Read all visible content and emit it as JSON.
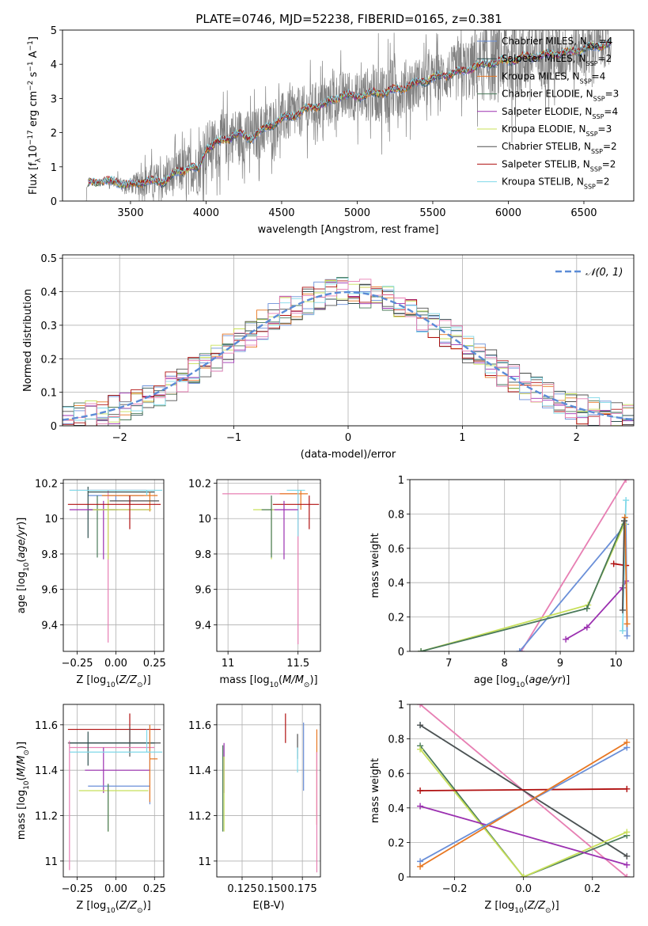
{
  "title": "PLATE=0746, MJD=52238, FIBERID=0165, z=0.381",
  "colors": {
    "Chabrier MILES": "#6a8fd8",
    "Salpeter MILES": "#2f4f4f",
    "Kroupa MILES": "#e87722",
    "Chabrier ELODIE": "#4a7a5a",
    "Salpeter ELODIE": "#9b30b0",
    "Kroupa ELODIE": "#c8e05a",
    "Chabrier STELIB": "#505050",
    "Salpeter STELIB": "#b01010",
    "Kroupa STELIB": "#7fd8e8",
    "Gaussian": "#5b8bd6",
    "Data": "#808080",
    "Pink": "#e77fb3"
  },
  "chart_data": [
    {
      "type": "line",
      "panel": "spectrum",
      "xlabel": "wavelength [Angstrom, rest frame]",
      "ylabel": "Flux [f_λ 10^-17 erg cm^-2 s^-1 A^-1]",
      "xlim": [
        3050,
        6830
      ],
      "ylim": [
        0,
        5
      ],
      "xticks": [
        3500,
        4000,
        4500,
        5000,
        5500,
        6000,
        6500
      ],
      "yticks": [
        0,
        1,
        2,
        3,
        4,
        5
      ],
      "legend_position": "right",
      "legend": [
        {
          "label": "Chabrier MILES, N",
          "sub": "SSP",
          "suffix": "=4",
          "color_key": "Chabrier MILES"
        },
        {
          "label": "Salpeter MILES, N",
          "sub": "SSP",
          "suffix": "=2",
          "color_key": "Salpeter MILES"
        },
        {
          "label": "Kroupa MILES, N",
          "sub": "SSP",
          "suffix": "=4",
          "color_key": "Kroupa MILES"
        },
        {
          "label": "Chabrier ELODIE, N",
          "sub": "SSP",
          "suffix": "=3",
          "color_key": "Chabrier ELODIE"
        },
        {
          "label": "Salpeter ELODIE, N",
          "sub": "SSP",
          "suffix": "=4",
          "color_key": "Salpeter ELODIE"
        },
        {
          "label": "Kroupa ELODIE, N",
          "sub": "SSP",
          "suffix": "=3",
          "color_key": "Kroupa ELODIE"
        },
        {
          "label": "Chabrier STELIB, N",
          "sub": "SSP",
          "suffix": "=2",
          "color_key": "Chabrier STELIB"
        },
        {
          "label": "Salpeter STELIB, N",
          "sub": "SSP",
          "suffix": "=2",
          "color_key": "Salpeter STELIB"
        },
        {
          "label": "Kroupa STELIB, N",
          "sub": "SSP",
          "suffix": "=2",
          "color_key": "Kroupa STELIB"
        }
      ],
      "model_continuum": [
        [
          3200,
          0.3
        ],
        [
          3230,
          0.55
        ],
        [
          3300,
          0.58
        ],
        [
          3400,
          0.56
        ],
        [
          3500,
          0.45
        ],
        [
          3600,
          0.6
        ],
        [
          3700,
          0.55
        ],
        [
          3800,
          0.8
        ],
        [
          3900,
          1.0
        ],
        [
          3950,
          0.9
        ],
        [
          4000,
          1.55
        ],
        [
          4100,
          1.75
        ],
        [
          4200,
          1.95
        ],
        [
          4300,
          1.85
        ],
        [
          4400,
          2.15
        ],
        [
          4500,
          2.4
        ],
        [
          4600,
          2.55
        ],
        [
          4700,
          2.75
        ],
        [
          4800,
          2.85
        ],
        [
          4900,
          3.1
        ],
        [
          5000,
          3.05
        ],
        [
          5100,
          3.15
        ],
        [
          5200,
          3.2
        ],
        [
          5300,
          3.3
        ],
        [
          5400,
          3.45
        ],
        [
          5500,
          3.6
        ],
        [
          5600,
          3.7
        ],
        [
          5700,
          3.8
        ],
        [
          5800,
          3.95
        ],
        [
          5900,
          4.05
        ],
        [
          6000,
          4.1
        ],
        [
          6100,
          4.2
        ],
        [
          6200,
          4.25
        ],
        [
          6300,
          4.3
        ],
        [
          6400,
          4.35
        ],
        [
          6500,
          4.45
        ],
        [
          6600,
          4.55
        ],
        [
          6680,
          4.6
        ]
      ],
      "data_noise_envelope": [
        [
          3200,
          0.0
        ],
        [
          3500,
          0.3
        ],
        [
          3600,
          0.6
        ],
        [
          3800,
          0.8
        ],
        [
          4000,
          1.0
        ],
        [
          4400,
          1.0
        ],
        [
          4700,
          0.9
        ],
        [
          5000,
          0.9
        ],
        [
          5200,
          1.2
        ],
        [
          5500,
          0.8
        ],
        [
          5800,
          1.3
        ],
        [
          6000,
          1.6
        ],
        [
          6200,
          1.2
        ],
        [
          6400,
          1.1
        ],
        [
          6680,
          0.8
        ]
      ]
    },
    {
      "type": "step",
      "panel": "residual_histogram",
      "xlabel": "(data-model)/error",
      "ylabel": "Normed distribution",
      "xlim": [
        -2.5,
        2.5
      ],
      "ylim": [
        0,
        0.51
      ],
      "xticks": [
        -2,
        -1,
        0,
        1,
        2
      ],
      "yticks": [
        0.0,
        0.1,
        0.2,
        0.3,
        0.4,
        0.5
      ],
      "grid": true,
      "legend_position": "top-right",
      "gaussian_label": "𝒩(0, 1)",
      "bin_width": 0.1
    },
    {
      "type": "errorbar",
      "panel": "age_vs_Z",
      "xlabel": "Z [log10(Z/Z⊙)]",
      "ylabel": "age  [log10(age/yr)]",
      "xlim": [
        -0.34,
        0.31
      ],
      "ylim": [
        9.25,
        10.22
      ],
      "xticks": [
        -0.25,
        0.0,
        0.25
      ],
      "xtick_labels": [
        "−0.25",
        "0.00",
        "0.25"
      ],
      "yticks": [
        9.4,
        9.6,
        9.8,
        10.0,
        10.2
      ],
      "grid": true,
      "points": [
        {
          "key": "Pink",
          "x": -0.05,
          "xerr": [
            0.25,
            0.25
          ],
          "y": 10.16,
          "yerr": [
            0.86,
            0.0
          ]
        },
        {
          "key": "Chabrier MILES",
          "x": 0.0,
          "xerr": [
            0.18,
            0.18
          ],
          "y": 10.13,
          "yerr": [
            0.03,
            0.0
          ]
        },
        {
          "key": "Salpeter MILES",
          "x": -0.18,
          "xerr": [
            0.0,
            0.43
          ],
          "y": 10.15,
          "yerr": [
            0.26,
            0.03
          ]
        },
        {
          "key": "Kroupa MILES",
          "x": 0.22,
          "xerr": [
            0.31,
            0.05
          ],
          "y": 10.13,
          "yerr": [
            0.09,
            0.02
          ]
        },
        {
          "key": "Chabrier ELODIE",
          "x": -0.12,
          "xerr": [
            0.06,
            0.13
          ],
          "y": 10.05,
          "yerr": [
            0.27,
            0.08
          ]
        },
        {
          "key": "Salpeter ELODIE",
          "x": -0.08,
          "xerr": [
            0.22,
            0.3
          ],
          "y": 10.05,
          "yerr": [
            0.28,
            0.05
          ]
        },
        {
          "key": "Kroupa ELODIE",
          "x": -0.05,
          "xerr": [
            0.1,
            0.28
          ],
          "y": 10.05,
          "yerr": [
            0.28,
            0.06
          ]
        },
        {
          "key": "Chabrier STELIB",
          "x": 0.09,
          "xerr": [
            0.13,
            0.19
          ],
          "y": 10.1,
          "yerr": [
            0.02,
            0.03
          ]
        },
        {
          "key": "Salpeter STELIB",
          "x": 0.09,
          "xerr": [
            0.4,
            0.2
          ],
          "y": 10.08,
          "yerr": [
            0.14,
            0.05
          ]
        },
        {
          "key": "Kroupa STELIB",
          "x": 0.2,
          "xerr": [
            0.5,
            0.1
          ],
          "y": 10.16,
          "yerr": [
            0.03,
            0.0
          ]
        }
      ]
    },
    {
      "type": "errorbar",
      "panel": "age_vs_mass",
      "xlabel": "mass [log10(M/M⊙)]",
      "ylabel": "",
      "xlim": [
        10.92,
        11.66
      ],
      "ylim": [
        9.25,
        10.22
      ],
      "xticks": [
        11.0,
        11.5
      ],
      "yticks": [
        9.4,
        9.6,
        9.8,
        10.0,
        10.2
      ],
      "grid": true,
      "points": [
        {
          "key": "Pink",
          "x": 11.5,
          "xerr": [
            0.54,
            0.0
          ],
          "y": 10.14,
          "yerr": [
            0.85,
            0.0
          ]
        },
        {
          "key": "Kroupa MILES",
          "x": 11.52,
          "xerr": [
            0.15,
            0.05
          ],
          "y": 10.14,
          "yerr": [
            0.09,
            0.02
          ]
        },
        {
          "key": "Kroupa STELIB",
          "x": 11.5,
          "xerr": [
            0.08,
            0.05
          ],
          "y": 10.16,
          "yerr": [
            0.26,
            0.0
          ]
        },
        {
          "key": "Salpeter STELIB",
          "x": 11.58,
          "xerr": [
            0.26,
            0.07
          ],
          "y": 10.08,
          "yerr": [
            0.14,
            0.05
          ]
        },
        {
          "key": "Salpeter ELODIE",
          "x": 11.4,
          "xerr": [
            0.1,
            0.1
          ],
          "y": 10.05,
          "yerr": [
            0.28,
            0.05
          ]
        },
        {
          "key": "Kroupa ELODIE",
          "x": 11.31,
          "xerr": [
            0.13,
            0.02
          ],
          "y": 10.05,
          "yerr": [
            0.28,
            0.06
          ]
        },
        {
          "key": "Chabrier ELODIE",
          "x": 11.31,
          "xerr": [
            0.07,
            0.0
          ],
          "y": 10.05,
          "yerr": [
            0.27,
            0.08
          ]
        }
      ]
    },
    {
      "type": "line",
      "panel": "mass_weight_vs_age",
      "xlabel": "age  [log10(age/yr)]",
      "ylabel": "mass weight",
      "xlim": [
        6.3,
        10.32
      ],
      "ylim": [
        0,
        1
      ],
      "xticks": [
        7,
        8,
        9,
        10
      ],
      "yticks": [
        0.0,
        0.2,
        0.4,
        0.6,
        0.8,
        1.0
      ],
      "grid": true,
      "series": [
        {
          "key": "Pink",
          "x": [
            8.3,
            10.18
          ],
          "y": [
            0.0,
            1.0
          ]
        },
        {
          "key": "Chabrier MILES",
          "x": [
            8.27,
            10.18,
            10.2
          ],
          "y": [
            0.0,
            0.74,
            0.09
          ]
        },
        {
          "key": "Kroupa ELODIE",
          "x": [
            6.5,
            9.5,
            10.15
          ],
          "y": [
            0.0,
            0.27,
            0.74
          ]
        },
        {
          "key": "Chabrier ELODIE",
          "x": [
            6.5,
            9.48,
            10.15
          ],
          "y": [
            0.0,
            0.25,
            0.76
          ]
        },
        {
          "key": "Salpeter ELODIE",
          "x": [
            9.1,
            9.48,
            10.12,
            10.18
          ],
          "y": [
            0.07,
            0.14,
            0.37,
            0.41
          ]
        },
        {
          "key": "Salpeter STELIB",
          "x": [
            9.96,
            10.18
          ],
          "y": [
            0.51,
            0.5
          ]
        },
        {
          "key": "Kroupa STELIB",
          "x": [
            10.12,
            10.18
          ],
          "y": [
            0.12,
            0.88
          ]
        },
        {
          "key": "Kroupa MILES",
          "x": [
            10.16,
            10.2
          ],
          "y": [
            0.78,
            0.16
          ]
        },
        {
          "key": "Chabrier STELIB",
          "x": [
            10.12,
            10.15
          ],
          "y": [
            0.24,
            0.76
          ]
        }
      ]
    },
    {
      "type": "errorbar",
      "panel": "mass_vs_Z",
      "xlabel": "Z [log10(Z/Z⊙)]",
      "ylabel": "mass [log10(M/M⊙)]",
      "xlim": [
        -0.34,
        0.31
      ],
      "ylim": [
        10.93,
        11.69
      ],
      "xticks": [
        -0.25,
        0.0,
        0.25
      ],
      "xtick_labels": [
        "−0.25",
        "0.00",
        "0.25"
      ],
      "yticks": [
        11.0,
        11.2,
        11.4,
        11.6
      ],
      "grid": true,
      "points": [
        {
          "key": "Salpeter STELIB",
          "x": 0.09,
          "xerr": [
            0.4,
            0.2
          ],
          "y": 11.58,
          "yerr": [
            0.06,
            0.07
          ]
        },
        {
          "key": "Chabrier STELIB",
          "x": 0.09,
          "xerr": [
            0.4,
            0.2
          ],
          "y": 11.52,
          "yerr": [
            0.06,
            0.07
          ]
        },
        {
          "key": "Pink",
          "x": -0.3,
          "xerr": [
            0.0,
            0.55
          ],
          "y": 11.5,
          "yerr": [
            0.54,
            0.03
          ]
        },
        {
          "key": "Salpeter MILES",
          "x": -0.18,
          "xerr": [
            0.12,
            0.43
          ],
          "y": 11.52,
          "yerr": [
            0.1,
            0.05
          ]
        },
        {
          "key": "Salpeter ELODIE",
          "x": -0.08,
          "xerr": [
            0.12,
            0.3
          ],
          "y": 11.4,
          "yerr": [
            0.1,
            0.1
          ]
        },
        {
          "key": "Chabrier MILES",
          "x": 0.22,
          "xerr": [
            0.4,
            0.0
          ],
          "y": 11.33,
          "yerr": [
            0.08,
            0.27
          ]
        },
        {
          "key": "Kroupa MILES",
          "x": 0.22,
          "xerr": [
            0.0,
            0.05
          ],
          "y": 11.45,
          "yerr": [
            0.19,
            0.15
          ]
        },
        {
          "key": "Kroupa ELODIE",
          "x": -0.05,
          "xerr": [
            0.19,
            0.26
          ],
          "y": 11.31,
          "yerr": [
            0.18,
            0.03
          ]
        },
        {
          "key": "Chabrier ELODIE",
          "x": -0.05,
          "xerr": [
            0.0,
            0.0
          ],
          "y": 11.31,
          "yerr": [
            0.18,
            0.03
          ]
        },
        {
          "key": "Kroupa STELIB",
          "x": 0.2,
          "xerr": [
            0.5,
            0.1
          ],
          "y": 11.48,
          "yerr": [
            0.0,
            0.1
          ]
        }
      ]
    },
    {
      "type": "errorbar",
      "panel": "mass_vs_EBV",
      "xlabel": "E(B-V)",
      "ylabel": "",
      "xlim": [
        0.104,
        0.19
      ],
      "ylim": [
        10.93,
        11.69
      ],
      "xticks": [
        0.125,
        0.15,
        0.175
      ],
      "xtick_labels": [
        "0.125",
        "0.150",
        "0.175"
      ],
      "yticks": [
        11.0,
        11.2,
        11.4,
        11.6
      ],
      "grid": true,
      "points": [
        {
          "key": "Salpeter STELIB",
          "x": 0.161,
          "yerr": [
            0.06,
            0.07
          ],
          "y": 11.58
        },
        {
          "key": "Chabrier STELIB",
          "x": 0.171,
          "yerr": [
            0.06,
            0.05
          ],
          "y": 11.51
        },
        {
          "key": "Kroupa STELIB",
          "x": 0.171,
          "yerr": [
            0.06,
            0.05
          ],
          "y": 11.45
        },
        {
          "key": "Chabrier MILES",
          "x": 0.176,
          "yerr": [
            0.15,
            0.15
          ],
          "y": 11.46
        },
        {
          "key": "Kroupa MILES",
          "x": 0.187,
          "yerr": [
            0.22,
            0.2
          ],
          "y": 11.38
        },
        {
          "key": "Pink",
          "x": 0.187,
          "yerr": [
            0.43,
            0.1
          ],
          "y": 11.38
        },
        {
          "key": "Salpeter ELODIE",
          "x": 0.11,
          "yerr": [
            0.1,
            0.12
          ],
          "y": 11.4
        },
        {
          "key": "Kroupa ELODIE",
          "x": 0.11,
          "yerr": [
            0.18,
            0.15
          ],
          "y": 11.31
        },
        {
          "key": "Chabrier ELODIE",
          "x": 0.109,
          "yerr": [
            0.18,
            0.2
          ],
          "y": 11.31
        }
      ]
    },
    {
      "type": "line",
      "panel": "mass_weight_vs_Z",
      "xlabel": "Z [log10(Z/Z⊙)]",
      "ylabel": "mass weight",
      "xlim": [
        -0.33,
        0.32
      ],
      "ylim": [
        0,
        1
      ],
      "xticks": [
        -0.2,
        0.0,
        0.2
      ],
      "xtick_labels": [
        "−0.2",
        "0.0",
        "0.2"
      ],
      "yticks": [
        0.0,
        0.2,
        0.4,
        0.6,
        0.8,
        1.0
      ],
      "grid": true,
      "series": [
        {
          "key": "Pink",
          "x": [
            -0.3,
            0.3
          ],
          "y": [
            1.0,
            0.0
          ]
        },
        {
          "key": "Kroupa STELIB",
          "x": [
            -0.3,
            0.3
          ],
          "y": [
            0.88,
            0.12
          ]
        },
        {
          "key": "Chabrier STELIB",
          "x": [
            -0.3,
            0.3
          ],
          "y": [
            0.88,
            0.12
          ]
        },
        {
          "key": "Chabrier ELODIE",
          "x": [
            -0.3,
            0.0,
            0.3
          ],
          "y": [
            0.76,
            0.0,
            0.24
          ]
        },
        {
          "key": "Kroupa ELODIE",
          "x": [
            -0.3,
            0.0,
            0.3
          ],
          "y": [
            0.74,
            0.0,
            0.26
          ]
        },
        {
          "key": "Salpeter STELIB",
          "x": [
            -0.3,
            0.3
          ],
          "y": [
            0.5,
            0.51
          ]
        },
        {
          "key": "Salpeter ELODIE",
          "x": [
            -0.3,
            0.3
          ],
          "y": [
            0.41,
            0.07
          ]
        },
        {
          "key": "Chabrier MILES",
          "x": [
            -0.3,
            0.3
          ],
          "y": [
            0.09,
            0.75
          ]
        },
        {
          "key": "Kroupa MILES",
          "x": [
            -0.3,
            0.3
          ],
          "y": [
            0.06,
            0.78
          ]
        }
      ]
    }
  ]
}
